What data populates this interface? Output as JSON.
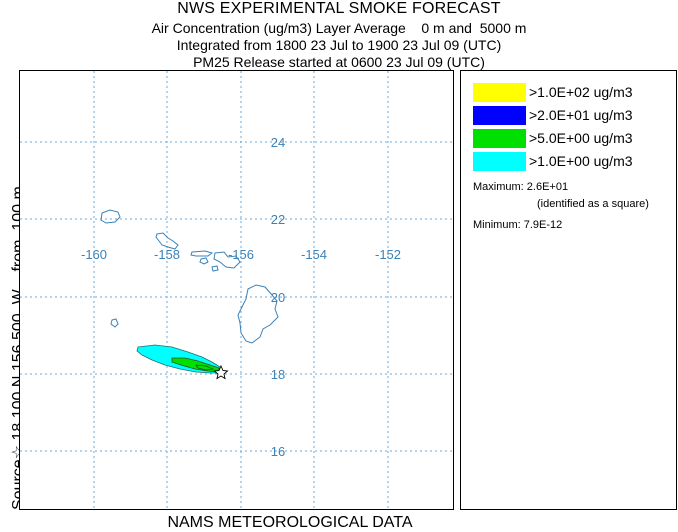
{
  "header": {
    "title": "NWS EXPERIMENTAL SMOKE FORECAST",
    "line2": "Air Concentration (ug/m3) Layer Average    0 m and  5000 m",
    "line3": "Integrated from 1800 23 Jul to 1900 23 Jul 09 (UTC)",
    "line4": "PM25 Release started at 0600 23 Jul 09 (UTC)"
  },
  "side_label": "Source☆ 18.100 N 156.500  W    from  100 m",
  "footer_label": "NAMS METEOROLOGICAL DATA",
  "map": {
    "lon_labels": [
      "-160",
      "-158",
      "-156",
      "-154",
      "-152"
    ],
    "lat_labels": [
      "24",
      "22",
      "20",
      "18",
      "16"
    ],
    "source_marker": "star-icon",
    "colors": {
      "grid": "#6fa8dc",
      "coast": "#3b82b8",
      "label": "#3b82b8"
    }
  },
  "legend": {
    "items": [
      {
        "label": ">1.0E+02 ug/m3",
        "color": "#ffff00"
      },
      {
        "label": ">2.0E+01 ug/m3",
        "color": "#0000ff"
      },
      {
        "label": ">5.0E+00 ug/m3",
        "color": "#00e000"
      },
      {
        "label": ">1.0E+00 ug/m3",
        "color": "#00ffff"
      }
    ],
    "maximum_label": "Maximum: 2.6E+01",
    "maximum_note": "(identified as a square)",
    "minimum_label": "Minimum: 7.9E-12"
  }
}
